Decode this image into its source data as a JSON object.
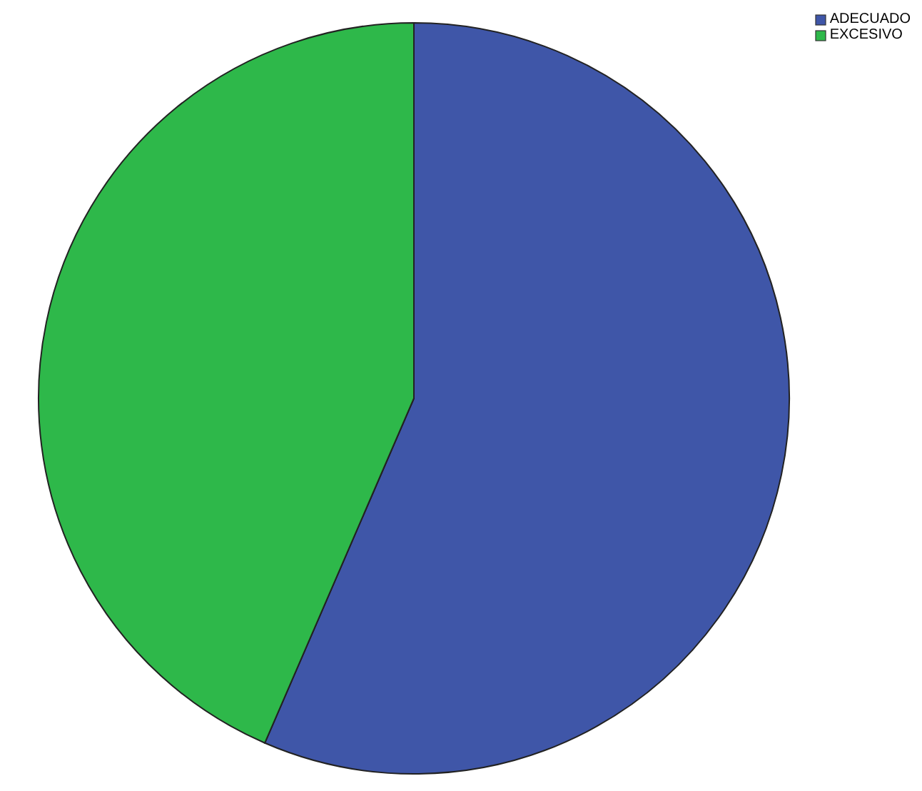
{
  "chart_data": {
    "type": "pie",
    "categories": [
      "ADECUADO",
      "EXCESIVO"
    ],
    "values": [
      56.5,
      43.5
    ],
    "colors": [
      "#3f56a8",
      "#2eb84a"
    ],
    "legend": "top right"
  }
}
